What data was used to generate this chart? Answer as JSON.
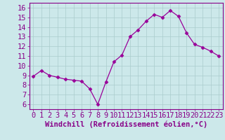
{
  "x": [
    0,
    1,
    2,
    3,
    4,
    5,
    6,
    7,
    8,
    9,
    10,
    11,
    12,
    13,
    14,
    15,
    16,
    17,
    18,
    19,
    20,
    21,
    22,
    23
  ],
  "y": [
    8.9,
    9.5,
    9.0,
    8.8,
    8.6,
    8.5,
    8.4,
    7.6,
    6.0,
    8.3,
    10.4,
    11.1,
    13.0,
    13.7,
    14.6,
    15.3,
    15.0,
    15.7,
    15.1,
    13.4,
    12.2,
    11.9,
    11.5,
    11.0
  ],
  "line_color": "#990099",
  "marker": "D",
  "marker_size": 2.5,
  "bg_color": "#cce8ea",
  "grid_color": "#aacccc",
  "xlabel": "Windchill (Refroidissement éolien,°C)",
  "ylabel": "",
  "title": "",
  "xlim": [
    -0.5,
    23.5
  ],
  "ylim": [
    5.5,
    16.5
  ],
  "yticks": [
    6,
    7,
    8,
    9,
    10,
    11,
    12,
    13,
    14,
    15,
    16
  ],
  "xticks": [
    0,
    1,
    2,
    3,
    4,
    5,
    6,
    7,
    8,
    9,
    10,
    11,
    12,
    13,
    14,
    15,
    16,
    17,
    18,
    19,
    20,
    21,
    22,
    23
  ],
  "xlabel_fontsize": 7.5,
  "tick_fontsize": 7.5,
  "axis_color": "#880088",
  "spine_color": "#880088",
  "label_color": "#880088"
}
